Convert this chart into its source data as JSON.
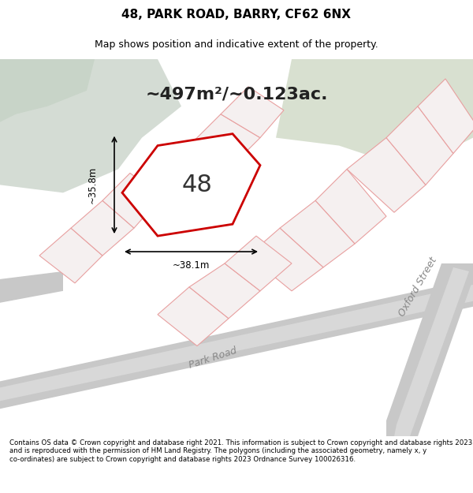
{
  "title": "48, PARK ROAD, BARRY, CF62 6NX",
  "subtitle": "Map shows position and indicative extent of the property.",
  "area_label": "~497m²/~0.123ac.",
  "property_number": "48",
  "measure_h": "~35.8m",
  "measure_w": "~38.1m",
  "footer": "Contains OS data © Crown copyright and database right 2021. This information is subject to Crown copyright and database rights 2023 and is reproduced with the permission of HM Land Registry. The polygons (including the associated geometry, namely x, y co-ordinates) are subject to Crown copyright and database rights 2023 Ordnance Survey 100026316.",
  "bg_map_color": "#e8ede8",
  "road_color": "#d8d8d8",
  "property_fill": "#ffffff",
  "property_edge": "#cc0000",
  "other_parcels_edge": "#e8a0a0",
  "other_parcels_fill": "#f5f0f0",
  "street_label_park_road": "Park Road",
  "street_label_oxford": "Oxford Street"
}
